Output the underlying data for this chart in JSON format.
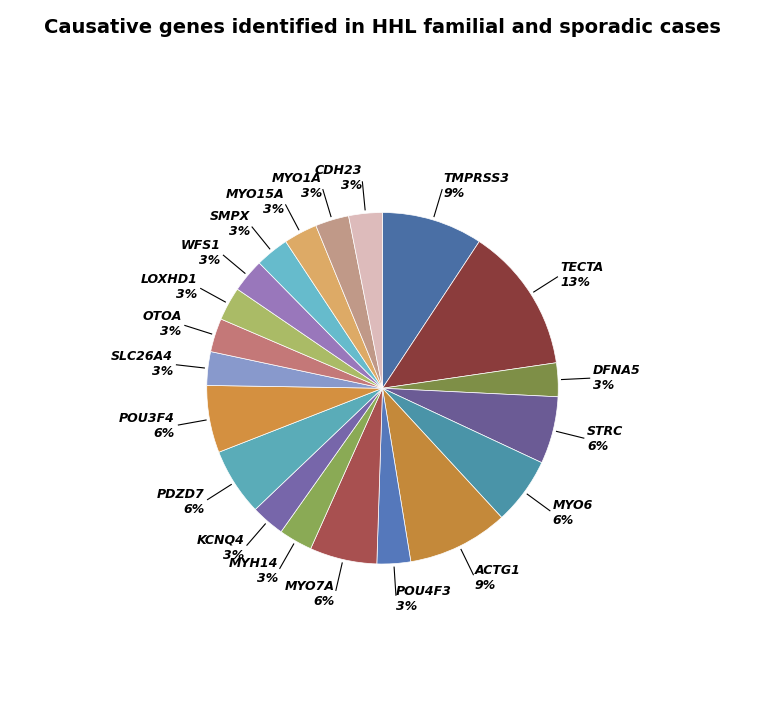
{
  "title": "Causative genes identified in HHL familial and sporadic cases",
  "segments": [
    {
      "label": "TMPRSS3",
      "pct": 9,
      "color": "#4a6fa5"
    },
    {
      "label": "TECTA",
      "pct": 13,
      "color": "#8b3c3c"
    },
    {
      "label": "DFNA5",
      "pct": 3,
      "color": "#7e8f47"
    },
    {
      "label": "STRC",
      "pct": 6,
      "color": "#6b5b95"
    },
    {
      "label": "MYO6",
      "pct": 6,
      "color": "#4a94a8"
    },
    {
      "label": "ACTG1",
      "pct": 9,
      "color": "#c4893a"
    },
    {
      "label": "POU4F3",
      "pct": 3,
      "color": "#5578bb"
    },
    {
      "label": "MYO7A",
      "pct": 6,
      "color": "#a85050"
    },
    {
      "label": "MYH14",
      "pct": 3,
      "color": "#8aaa55"
    },
    {
      "label": "KCNQ4",
      "pct": 3,
      "color": "#7766aa"
    },
    {
      "label": "PDZD7",
      "pct": 6,
      "color": "#5aacb8"
    },
    {
      "label": "POU3F4",
      "pct": 6,
      "color": "#d49040"
    },
    {
      "label": "SLC26A4",
      "pct": 3,
      "color": "#8899cc"
    },
    {
      "label": "OTOA",
      "pct": 3,
      "color": "#c47878"
    },
    {
      "label": "LOXHD1",
      "pct": 3,
      "color": "#aabb66"
    },
    {
      "label": "WFS1",
      "pct": 3,
      "color": "#9977bb"
    },
    {
      "label": "SMPX",
      "pct": 3,
      "color": "#66bbcc"
    },
    {
      "label": "MYO15A",
      "pct": 3,
      "color": "#ddaa66"
    },
    {
      "label": "MYO1A",
      "pct": 3,
      "color": "#c09988"
    },
    {
      "label": "CDH23",
      "pct": 3,
      "color": "#ddbbbb"
    }
  ],
  "title_fontsize": 14,
  "label_fontsize": 9,
  "figsize": [
    7.65,
    7.19
  ],
  "dpi": 100
}
